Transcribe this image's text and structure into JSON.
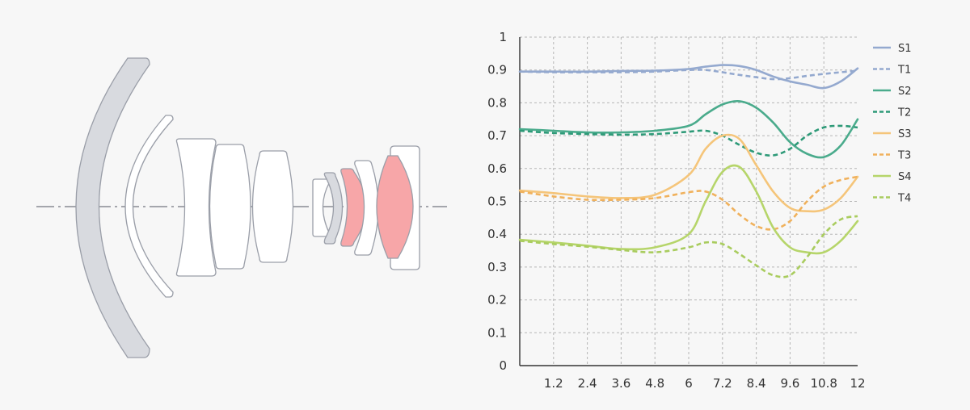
{
  "diagram": {
    "colors": {
      "element_fill": "#ffffff",
      "element_stroke": "#9a9ea8",
      "front_element_fill": "#dcdee2",
      "highlight_fill": "#f7a6a8",
      "gray_fill": "#d8dadf",
      "axis_line": "#888c94"
    }
  },
  "chart_data": {
    "type": "line",
    "x_ticks": [
      "1.2",
      "2.4",
      "3.6",
      "4.8",
      "6",
      "7.2",
      "8.4",
      "9.6",
      "10.8",
      "12"
    ],
    "y_ticks": [
      "0",
      "0.1",
      "0.2",
      "0.3",
      "0.4",
      "0.5",
      "0.6",
      "0.7",
      "0.8",
      "0.9",
      "1"
    ],
    "xlim": [
      0,
      12
    ],
    "ylim": [
      0,
      1
    ],
    "grid": true,
    "legend_position": "right",
    "x": [
      0,
      1.2,
      2.4,
      3.6,
      4.8,
      6.0,
      6.6,
      7.2,
      7.8,
      8.4,
      9.0,
      9.6,
      10.2,
      10.8,
      11.4,
      12.0
    ],
    "series": [
      {
        "name": "S1",
        "color": "#94a9cf",
        "dash": false,
        "values": [
          0.895,
          0.895,
          0.895,
          0.897,
          0.898,
          0.903,
          0.91,
          0.915,
          0.912,
          0.9,
          0.88,
          0.865,
          0.855,
          0.845,
          0.865,
          0.905
        ]
      },
      {
        "name": "T1",
        "color": "#94a9cf",
        "dash": true,
        "values": [
          0.895,
          0.893,
          0.893,
          0.893,
          0.895,
          0.9,
          0.9,
          0.893,
          0.885,
          0.878,
          0.872,
          0.875,
          0.882,
          0.888,
          0.893,
          0.898
        ]
      },
      {
        "name": "S2",
        "color": "#4aab8c",
        "dash": false,
        "values": [
          0.72,
          0.715,
          0.71,
          0.71,
          0.715,
          0.73,
          0.765,
          0.795,
          0.805,
          0.785,
          0.74,
          0.68,
          0.645,
          0.635,
          0.67,
          0.75
        ]
      },
      {
        "name": "T2",
        "color": "#2e9a78",
        "dash": true,
        "values": [
          0.715,
          0.708,
          0.705,
          0.703,
          0.705,
          0.712,
          0.715,
          0.7,
          0.672,
          0.648,
          0.64,
          0.66,
          0.7,
          0.725,
          0.73,
          0.725
        ]
      },
      {
        "name": "S3",
        "color": "#f5c57a",
        "dash": false,
        "values": [
          0.533,
          0.525,
          0.515,
          0.51,
          0.52,
          0.58,
          0.66,
          0.7,
          0.69,
          0.61,
          0.53,
          0.48,
          0.47,
          0.475,
          0.51,
          0.575
        ]
      },
      {
        "name": "T3",
        "color": "#f0b15c",
        "dash": true,
        "values": [
          0.53,
          0.515,
          0.505,
          0.505,
          0.51,
          0.528,
          0.53,
          0.505,
          0.46,
          0.425,
          0.415,
          0.44,
          0.5,
          0.545,
          0.565,
          0.575
        ]
      },
      {
        "name": "S4",
        "color": "#b6d56a",
        "dash": false,
        "values": [
          0.383,
          0.375,
          0.365,
          0.355,
          0.36,
          0.4,
          0.5,
          0.59,
          0.605,
          0.53,
          0.42,
          0.36,
          0.345,
          0.345,
          0.38,
          0.44
        ]
      },
      {
        "name": "T4",
        "color": "#a9cc5e",
        "dash": true,
        "values": [
          0.38,
          0.37,
          0.362,
          0.352,
          0.345,
          0.36,
          0.375,
          0.37,
          0.34,
          0.305,
          0.275,
          0.275,
          0.33,
          0.4,
          0.445,
          0.455
        ]
      }
    ]
  }
}
